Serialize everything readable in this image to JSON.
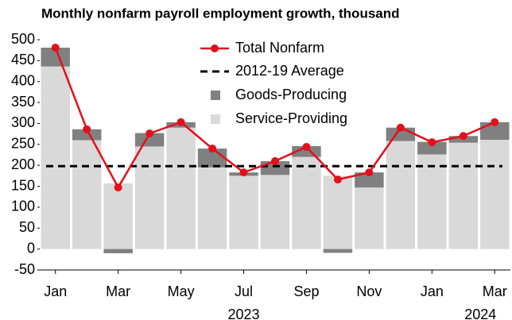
{
  "chart_data": {
    "type": "combo",
    "title": "Monthly nonfarm payroll employment growth, thousand",
    "categories": [
      "Jan",
      null,
      "Mar",
      null,
      "May",
      null,
      "Jul",
      null,
      "Sep",
      null,
      "Nov",
      null,
      "Jan",
      null,
      "Mar"
    ],
    "years": [
      "2023",
      "2024"
    ],
    "series": [
      {
        "name": "Total Nonfarm",
        "type": "line",
        "color": "#e3101c",
        "values": [
          481,
          286,
          147,
          276,
          303,
          240,
          183,
          210,
          244,
          166,
          183,
          290,
          255,
          270,
          303
        ]
      },
      {
        "name": "Goods-Producing",
        "type": "bar",
        "color": "#808080",
        "values": [
          45,
          26,
          -10,
          32,
          13,
          45,
          8,
          33,
          26,
          -9,
          36,
          32,
          30,
          16,
          42
        ]
      },
      {
        "name": "Service-Providing",
        "type": "bar",
        "color": "#d9d9d9",
        "values": [
          436,
          260,
          157,
          245,
          290,
          195,
          175,
          177,
          220,
          175,
          147,
          258,
          226,
          254,
          261
        ]
      }
    ],
    "reference_line": {
      "name": "2012-19 Average",
      "value": 198,
      "color": "#000000"
    },
    "ylim": [
      -50,
      500
    ],
    "yticks": [
      -50,
      0,
      50,
      100,
      150,
      200,
      250,
      300,
      350,
      400,
      450,
      500
    ]
  }
}
